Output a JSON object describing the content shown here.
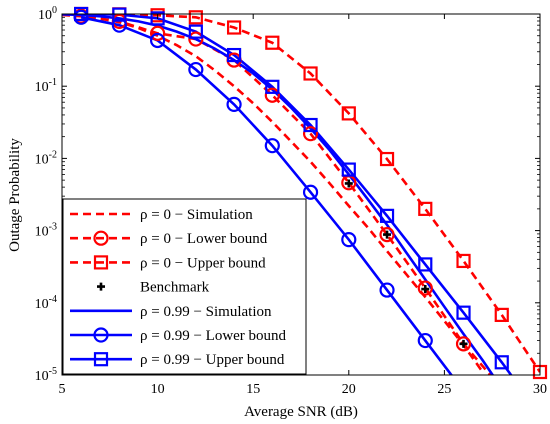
{
  "chart_data": {
    "type": "line",
    "title": "",
    "xlabel": "Average SNR (dB)",
    "ylabel": "Outage Probability",
    "xlim": [
      5,
      30
    ],
    "ylim": [
      1e-05,
      1
    ],
    "yscale": "log",
    "grid": false,
    "legend_position": "bottom-left",
    "x_ticks": [
      "5",
      "10",
      "15",
      "20",
      "25",
      "30"
    ],
    "y_ticks": [
      {
        "value": 1,
        "base": "10",
        "exp": "0"
      },
      {
        "value": 0.1,
        "base": "10",
        "exp": "-1"
      },
      {
        "value": 0.01,
        "base": "10",
        "exp": "-2"
      },
      {
        "value": 0.001,
        "base": "10",
        "exp": "-3"
      },
      {
        "value": 0.0001,
        "base": "10",
        "exp": "-4"
      },
      {
        "value": 1e-05,
        "base": "10",
        "exp": "-5"
      }
    ],
    "series": [
      {
        "name": "ρ = 0 − Simulation",
        "color": "#ff0000",
        "dash": "dashed",
        "marker": "none",
        "x": [
          5,
          6,
          7,
          8,
          9,
          10,
          11,
          12,
          13,
          14,
          15,
          16,
          17,
          18,
          19,
          20,
          21,
          22,
          23,
          24,
          25,
          26,
          27
        ],
        "y": [
          0.99,
          0.95,
          0.87,
          0.77,
          0.64,
          0.5,
          0.37,
          0.26,
          0.165,
          0.1,
          0.058,
          0.032,
          0.017,
          0.009,
          0.0045,
          0.0022,
          0.0011,
          0.00052,
          0.00025,
          0.00012,
          5.6e-05,
          2.6e-05,
          1.1e-05
        ]
      },
      {
        "name": "ρ = 0 − Lower bound",
        "color": "#ff0000",
        "dash": "dashed",
        "marker": "circle",
        "x": [
          5,
          6,
          8,
          10,
          12,
          14,
          16,
          18,
          20,
          22,
          24,
          26,
          27.4
        ],
        "y": [
          0.97,
          0.93,
          0.79,
          0.54,
          0.45,
          0.23,
          0.075,
          0.022,
          0.0046,
          0.00088,
          0.00016,
          2.7e-05,
          1e-05
        ],
        "marker_x": [
          6,
          8,
          10,
          12,
          14,
          16,
          18,
          20,
          22,
          24,
          26
        ],
        "marker_y": [
          0.93,
          0.79,
          0.54,
          0.45,
          0.23,
          0.075,
          0.022,
          0.0046,
          0.00088,
          0.00016,
          2.7e-05
        ]
      },
      {
        "name": "ρ = 0 − Upper bound",
        "color": "#ff0000",
        "dash": "dashed",
        "marker": "square",
        "x": [
          5,
          6,
          8,
          10,
          12,
          14,
          16,
          18,
          20,
          22,
          24,
          26,
          28,
          30
        ],
        "y": [
          1,
          1,
          0.99,
          0.96,
          0.9,
          0.65,
          0.4,
          0.15,
          0.042,
          0.0098,
          0.002,
          0.00038,
          6.8e-05,
          1.1e-05
        ],
        "marker_x": [
          6,
          8,
          10,
          12,
          14,
          16,
          18,
          20,
          22,
          24,
          26,
          28,
          30
        ],
        "marker_y": [
          1,
          0.99,
          0.96,
          0.9,
          0.65,
          0.4,
          0.15,
          0.042,
          0.0098,
          0.002,
          0.00038,
          6.8e-05,
          1.1e-05
        ]
      },
      {
        "name": "Benchmark",
        "color": "#000000",
        "dash": "none",
        "marker": "plus",
        "x": [
          20,
          22,
          24,
          26
        ],
        "y": [
          0.0045,
          0.00088,
          0.000155,
          2.7e-05
        ]
      },
      {
        "name": "ρ = 0.99 − Simulation",
        "color": "#0000ff",
        "dash": "solid",
        "marker": "none",
        "x": [
          5,
          6,
          7,
          8,
          9,
          10,
          11,
          12,
          13,
          14,
          15,
          16,
          17,
          18,
          19,
          20,
          21,
          22,
          23,
          24,
          25,
          26,
          27,
          28
        ],
        "y": [
          0.99,
          0.97,
          0.93,
          0.87,
          0.79,
          0.69,
          0.57,
          0.45,
          0.33,
          0.23,
          0.15,
          0.09,
          0.05,
          0.026,
          0.013,
          0.006,
          0.0027,
          0.0012,
          0.0005,
          0.00021,
          8.8e-05,
          3.7e-05,
          1.6e-05,
          6.5e-06
        ]
      },
      {
        "name": "ρ = 0.99 − Lower bound",
        "color": "#0000ff",
        "dash": "solid",
        "marker": "circle",
        "x": [
          6,
          8,
          10,
          12,
          14,
          16,
          18,
          20,
          22,
          24,
          26
        ],
        "y": [
          0.9,
          0.7,
          0.43,
          0.17,
          0.056,
          0.015,
          0.0034,
          0.00075,
          0.00015,
          3e-05,
          6e-06
        ],
        "marker_x": [
          6,
          8,
          10,
          12,
          14,
          16,
          18,
          20,
          22,
          24
        ],
        "marker_y": [
          0.9,
          0.7,
          0.43,
          0.17,
          0.056,
          0.015,
          0.0034,
          0.00075,
          0.00015,
          3e-05
        ]
      },
      {
        "name": "ρ = 0.99 − Upper bound",
        "color": "#0000ff",
        "dash": "solid",
        "marker": "square",
        "x": [
          5,
          6,
          8,
          10,
          12,
          14,
          16,
          18,
          20,
          22,
          24,
          26,
          28,
          29
        ],
        "y": [
          1,
          1,
          0.98,
          0.87,
          0.57,
          0.27,
          0.098,
          0.029,
          0.007,
          0.0016,
          0.00034,
          7.3e-05,
          1.5e-05,
          6.5e-06
        ],
        "marker_x": [
          6,
          8,
          10,
          12,
          14,
          16,
          18,
          20,
          22,
          24,
          26,
          28
        ],
        "marker_y": [
          1,
          0.98,
          0.87,
          0.57,
          0.27,
          0.098,
          0.029,
          0.007,
          0.0016,
          0.00034,
          7.3e-05,
          1.5e-05
        ]
      }
    ]
  }
}
